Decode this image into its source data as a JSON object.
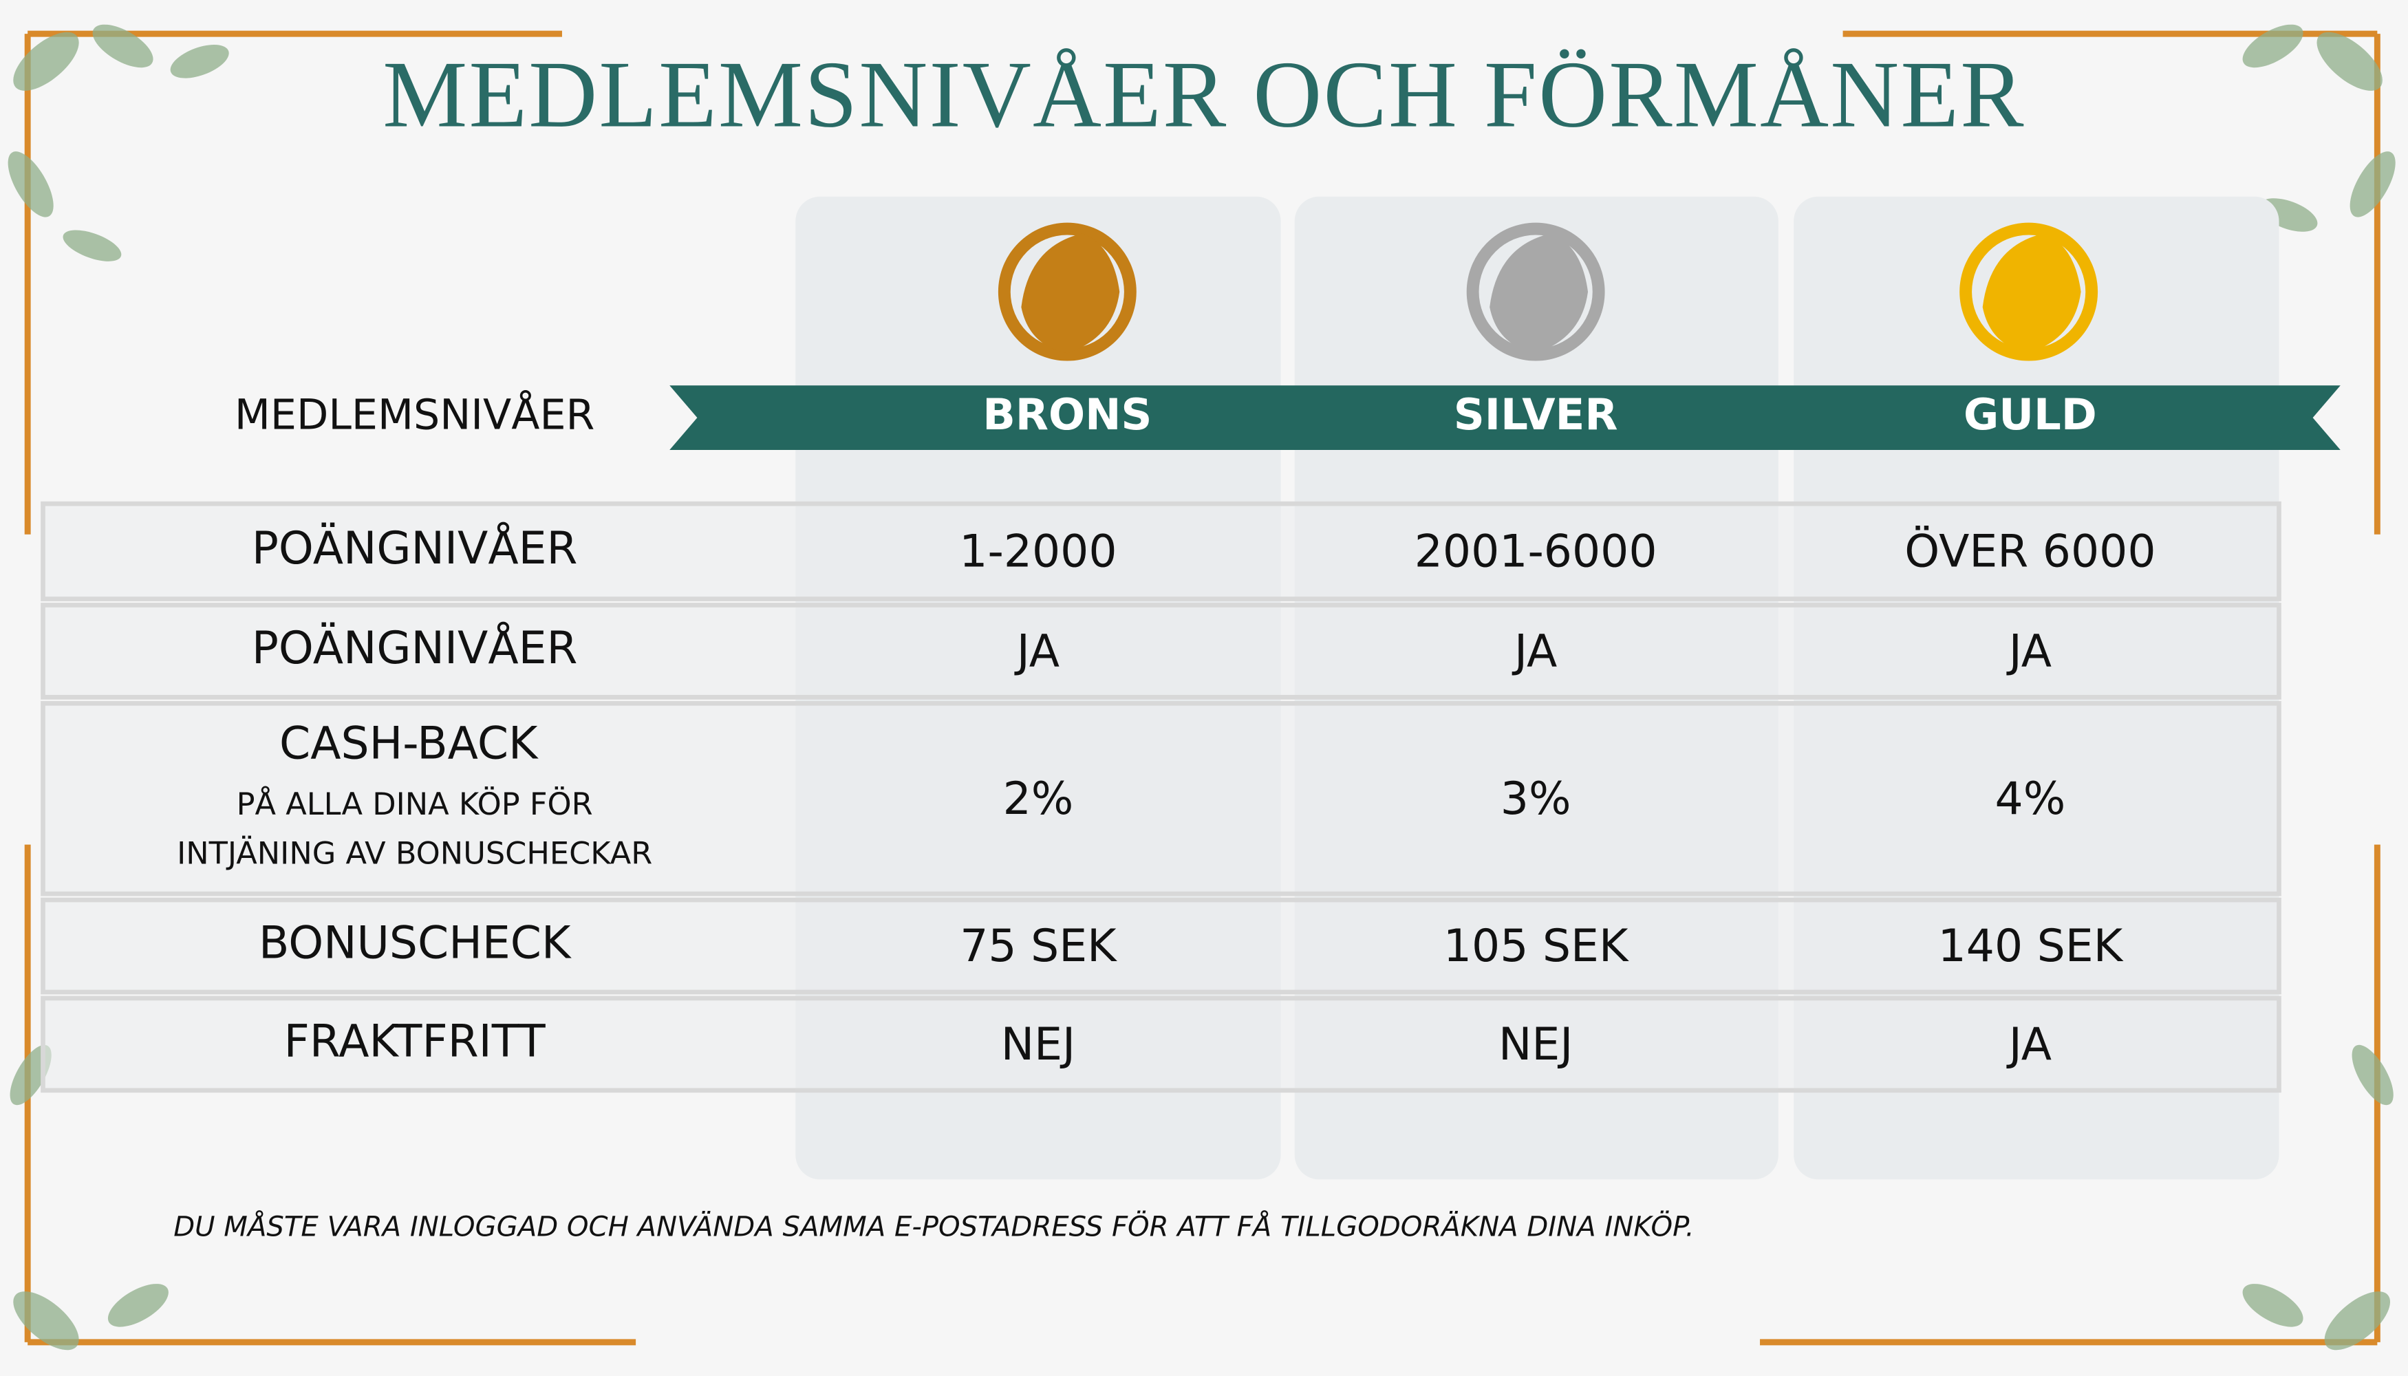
{
  "title": "MEDLEMSNIVÅER OCH FÖRMÅNER",
  "header": {
    "label": "MEDLEMSNIVÅER",
    "tiers": [
      "BRONS",
      "SILVER",
      "GULD"
    ]
  },
  "table": {
    "rows": [
      {
        "label": "POÄNGNIVÅER",
        "values": [
          "1-2000",
          "2001-6000",
          "ÖVER 6000"
        ]
      },
      {
        "label": "POÄNGNIVÅER",
        "values": [
          "JA",
          "JA",
          "JA"
        ]
      },
      {
        "label": "CASH-BACK",
        "sublabel": [
          "PÅ ALLA DINA KÖP FÖR",
          "INTJÄNING AV BONUSCHECKAR"
        ],
        "values": [
          "2%",
          "3%",
          "4%"
        ]
      },
      {
        "label": "BONUSCHECK",
        "values": [
          "75 SEK",
          "105 SEK",
          "140 SEK"
        ]
      },
      {
        "label": "FRAKTFRITT",
        "values": [
          "NEJ",
          "NEJ",
          "JA"
        ]
      }
    ]
  },
  "footer": "DU MÅSTE VARA INLOGGAD OCH ANVÄNDA SAMMA E-POSTADRESS FÖR ATT FÅ TILLGODORÄKNA DINA INKÖP."
}
